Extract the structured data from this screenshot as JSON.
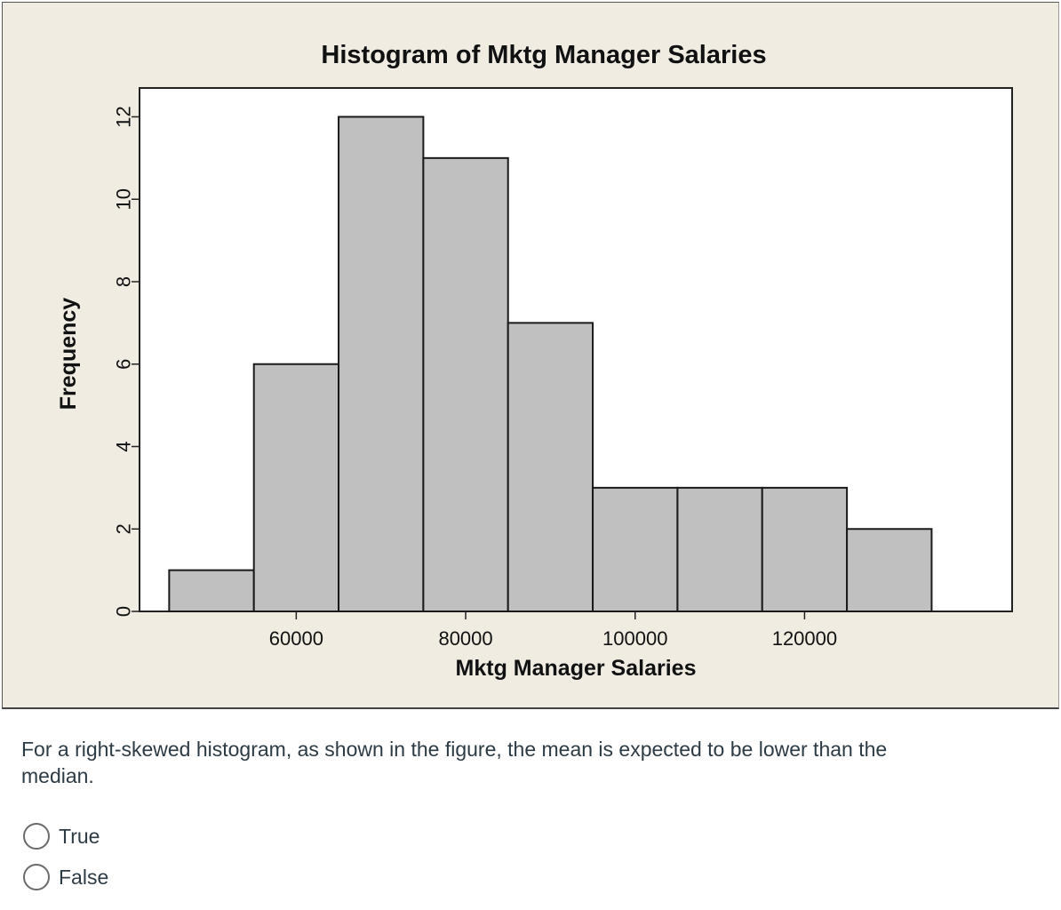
{
  "chart_data": {
    "type": "bar",
    "title": "Histogram of Mktg Manager Salaries",
    "xlabel": "Mktg Manager Salaries",
    "ylabel": "Frequency",
    "bin_width": 10000,
    "bins": [
      {
        "start": 45000,
        "end": 55000,
        "count": 1
      },
      {
        "start": 55000,
        "end": 65000,
        "count": 6
      },
      {
        "start": 65000,
        "end": 75000,
        "count": 12
      },
      {
        "start": 75000,
        "end": 85000,
        "count": 11
      },
      {
        "start": 85000,
        "end": 95000,
        "count": 7
      },
      {
        "start": 95000,
        "end": 105000,
        "count": 3
      },
      {
        "start": 105000,
        "end": 115000,
        "count": 3
      },
      {
        "start": 115000,
        "end": 125000,
        "count": 3
      },
      {
        "start": 125000,
        "end": 135000,
        "count": 2
      }
    ],
    "xticks": [
      60000,
      80000,
      100000,
      120000
    ],
    "yticks": [
      0,
      2,
      4,
      6,
      8,
      10,
      12
    ],
    "xlim": [
      41500,
      144500
    ],
    "ylim": [
      0,
      12.7
    ],
    "grid": false,
    "colors": {
      "bar_fill": "#c0c0c0",
      "bar_stroke": "#1a1a1a",
      "plot_bg": "#ffffff",
      "frame_bg": "#f0ece2"
    }
  },
  "question": {
    "text": "For a right-skewed histogram, as shown in the figure, the mean is expected to be lower than the median.",
    "options": [
      {
        "label": "True",
        "selected": false
      },
      {
        "label": "False",
        "selected": false
      }
    ]
  }
}
